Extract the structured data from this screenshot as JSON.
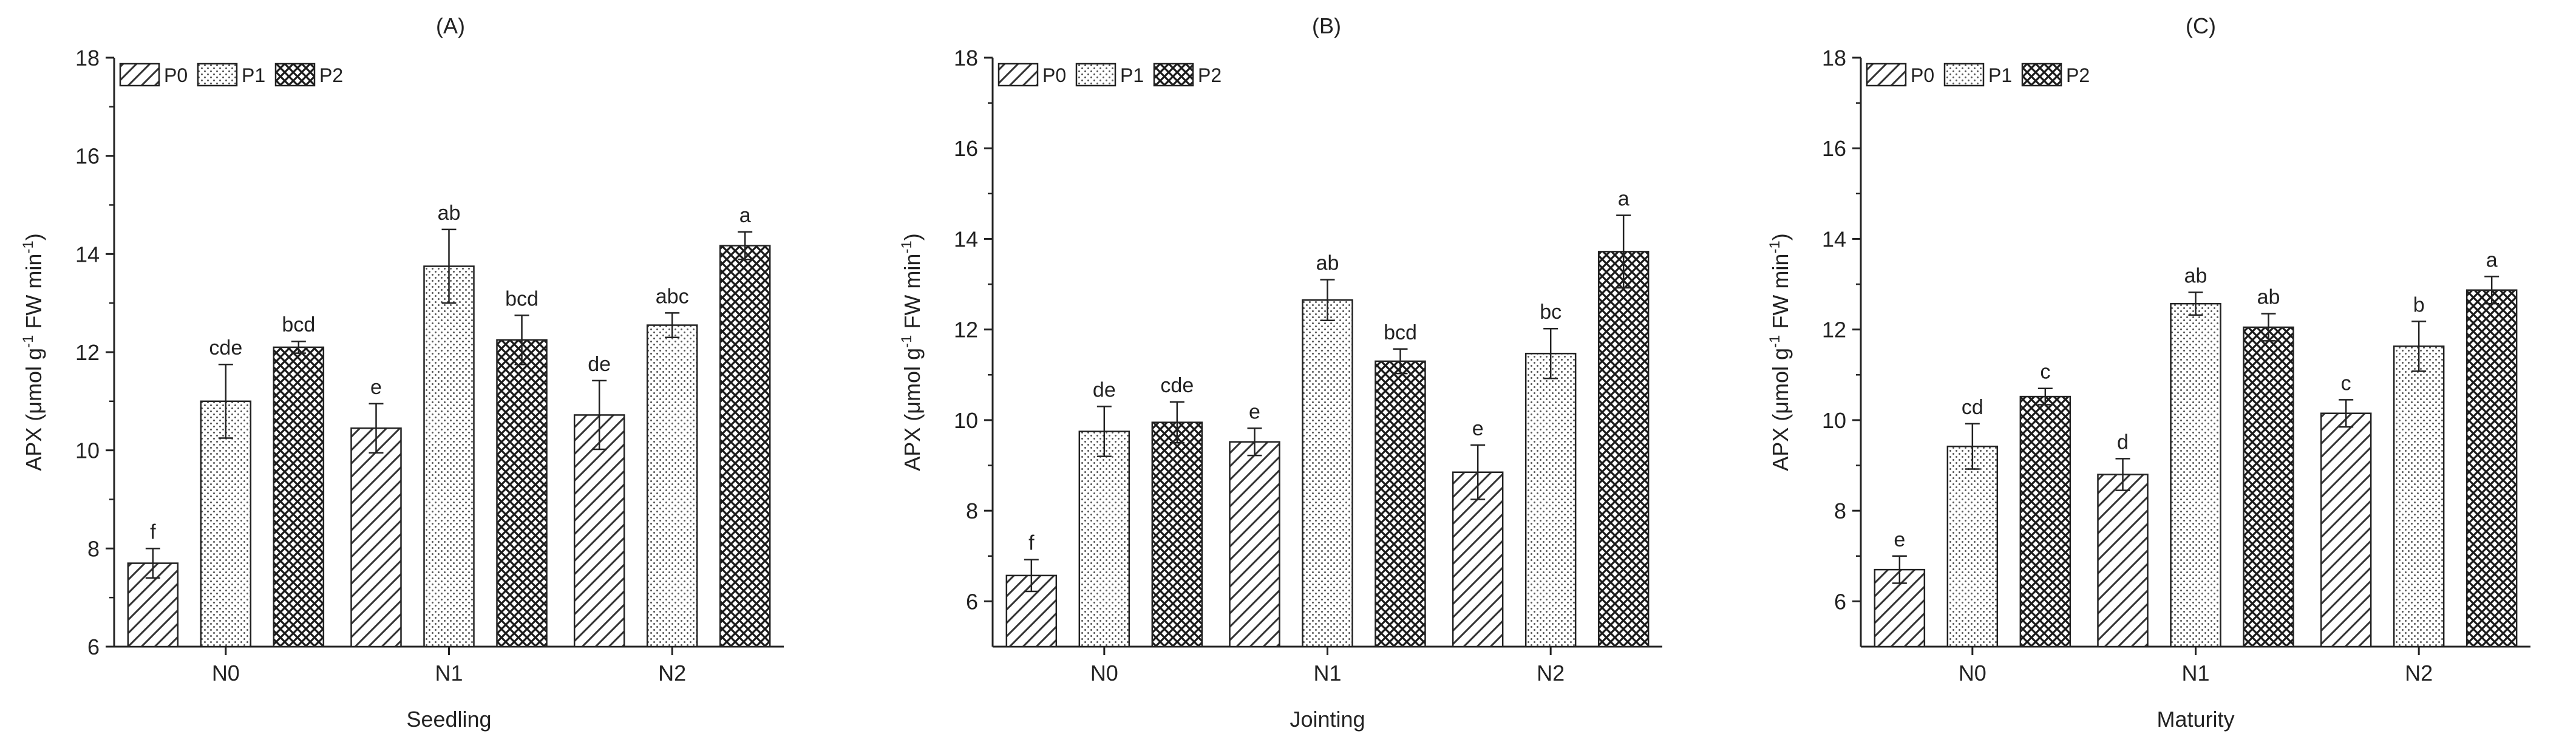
{
  "chart_data": [
    {
      "type": "bar",
      "panel_label": "(A)",
      "xlabel": "Seedling",
      "ylabel_parts": [
        "APX (μmol g",
        "-1",
        " FW min",
        "-1",
        ")"
      ],
      "ylim": [
        6,
        18
      ],
      "yticks": [
        6,
        8,
        10,
        12,
        14,
        16,
        18
      ],
      "categories": [
        "N0",
        "N1",
        "N2"
      ],
      "legend_position": "top-left",
      "series": [
        {
          "name": "P0",
          "values": [
            7.7,
            10.45,
            10.72
          ],
          "errors": [
            0.3,
            0.5,
            0.7
          ],
          "letters": [
            "f",
            "e",
            "de"
          ]
        },
        {
          "name": "P1",
          "values": [
            11.0,
            13.75,
            12.55
          ],
          "errors": [
            0.75,
            0.75,
            0.25
          ],
          "letters": [
            "cde",
            "ab",
            "abc"
          ]
        },
        {
          "name": "P2",
          "values": [
            12.1,
            12.25,
            14.17
          ],
          "errors": [
            0.12,
            0.5,
            0.28
          ],
          "letters": [
            "bcd",
            "bcd",
            "a"
          ]
        }
      ]
    },
    {
      "type": "bar",
      "panel_label": "(B)",
      "xlabel": "Jointing",
      "ylabel_parts": [
        "APX (μmol g",
        "-1",
        " FW min",
        "-1",
        ")"
      ],
      "ylim": [
        5,
        18
      ],
      "yticks": [
        6,
        8,
        10,
        12,
        14,
        16,
        18
      ],
      "categories": [
        "N0",
        "N1",
        "N2"
      ],
      "legend_position": "top-left",
      "series": [
        {
          "name": "P0",
          "values": [
            6.57,
            9.52,
            8.85
          ],
          "errors": [
            0.35,
            0.3,
            0.6
          ],
          "letters": [
            "f",
            "e",
            "e"
          ]
        },
        {
          "name": "P1",
          "values": [
            9.75,
            12.65,
            11.47
          ],
          "errors": [
            0.55,
            0.45,
            0.55
          ],
          "letters": [
            "de",
            "ab",
            "bc"
          ]
        },
        {
          "name": "P2",
          "values": [
            9.95,
            11.3,
            13.72
          ],
          "errors": [
            0.45,
            0.27,
            0.8
          ],
          "letters": [
            "cde",
            "bcd",
            "a"
          ]
        }
      ]
    },
    {
      "type": "bar",
      "panel_label": "(C)",
      "xlabel": "Maturity",
      "ylabel_parts": [
        "APX (μmol g",
        "-1",
        " FW min",
        "-1",
        ")"
      ],
      "ylim": [
        5,
        18
      ],
      "yticks": [
        6,
        8,
        10,
        12,
        14,
        16,
        18
      ],
      "categories": [
        "N0",
        "N1",
        "N2"
      ],
      "legend_position": "top-left",
      "series": [
        {
          "name": "P0",
          "values": [
            6.7,
            8.8,
            10.15
          ],
          "errors": [
            0.3,
            0.35,
            0.3
          ],
          "letters": [
            "e",
            "d",
            "c"
          ]
        },
        {
          "name": "P1",
          "values": [
            9.42,
            12.57,
            11.63
          ],
          "errors": [
            0.5,
            0.25,
            0.55
          ],
          "letters": [
            "cd",
            "ab",
            "b"
          ]
        },
        {
          "name": "P2",
          "values": [
            10.52,
            12.05,
            12.87
          ],
          "errors": [
            0.18,
            0.3,
            0.3
          ],
          "letters": [
            "c",
            "ab",
            "a"
          ]
        }
      ]
    }
  ]
}
